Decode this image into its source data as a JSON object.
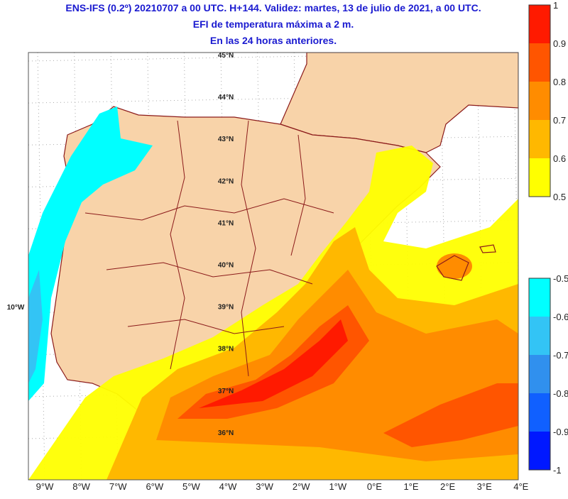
{
  "header": {
    "lines": [
      "ENS-IFS (0.2º) 20210707 a 00 UTC. H+144. Validez: martes, 13 de julio de 2021, a 00 UTC.",
      "EFI de temperatura máxima a 2 m.",
      "En las 24 horas anteriores."
    ]
  },
  "map": {
    "lat_labels": [
      "45°N",
      "44°N",
      "43°N",
      "42°N",
      "41°N",
      "40°N",
      "39°N",
      "38°N",
      "37°N",
      "36°N"
    ],
    "lon_labels": [
      "9°W",
      "8°W",
      "7°W",
      "6°W",
      "5°W",
      "4°W",
      "3°W",
      "2°W",
      "1°W",
      "0°E",
      "1°E",
      "2°E",
      "3°E",
      "4°E"
    ],
    "side_label": "10°W"
  },
  "legend_warm": {
    "labels": [
      "1",
      "0.9",
      "0.8",
      "0.7",
      "0.6",
      "0.5"
    ],
    "colors": [
      "#ff1a00",
      "#ff5500",
      "#ff8c00",
      "#ffb800",
      "#ffff00"
    ]
  },
  "legend_cold": {
    "labels": [
      "-0.5",
      "-0.6",
      "-0.7",
      "-0.8",
      "-0.9",
      "-1"
    ],
    "colors": [
      "#00ffff",
      "#33c4f5",
      "#3090ee",
      "#1060ff",
      "#0018ff"
    ]
  }
}
